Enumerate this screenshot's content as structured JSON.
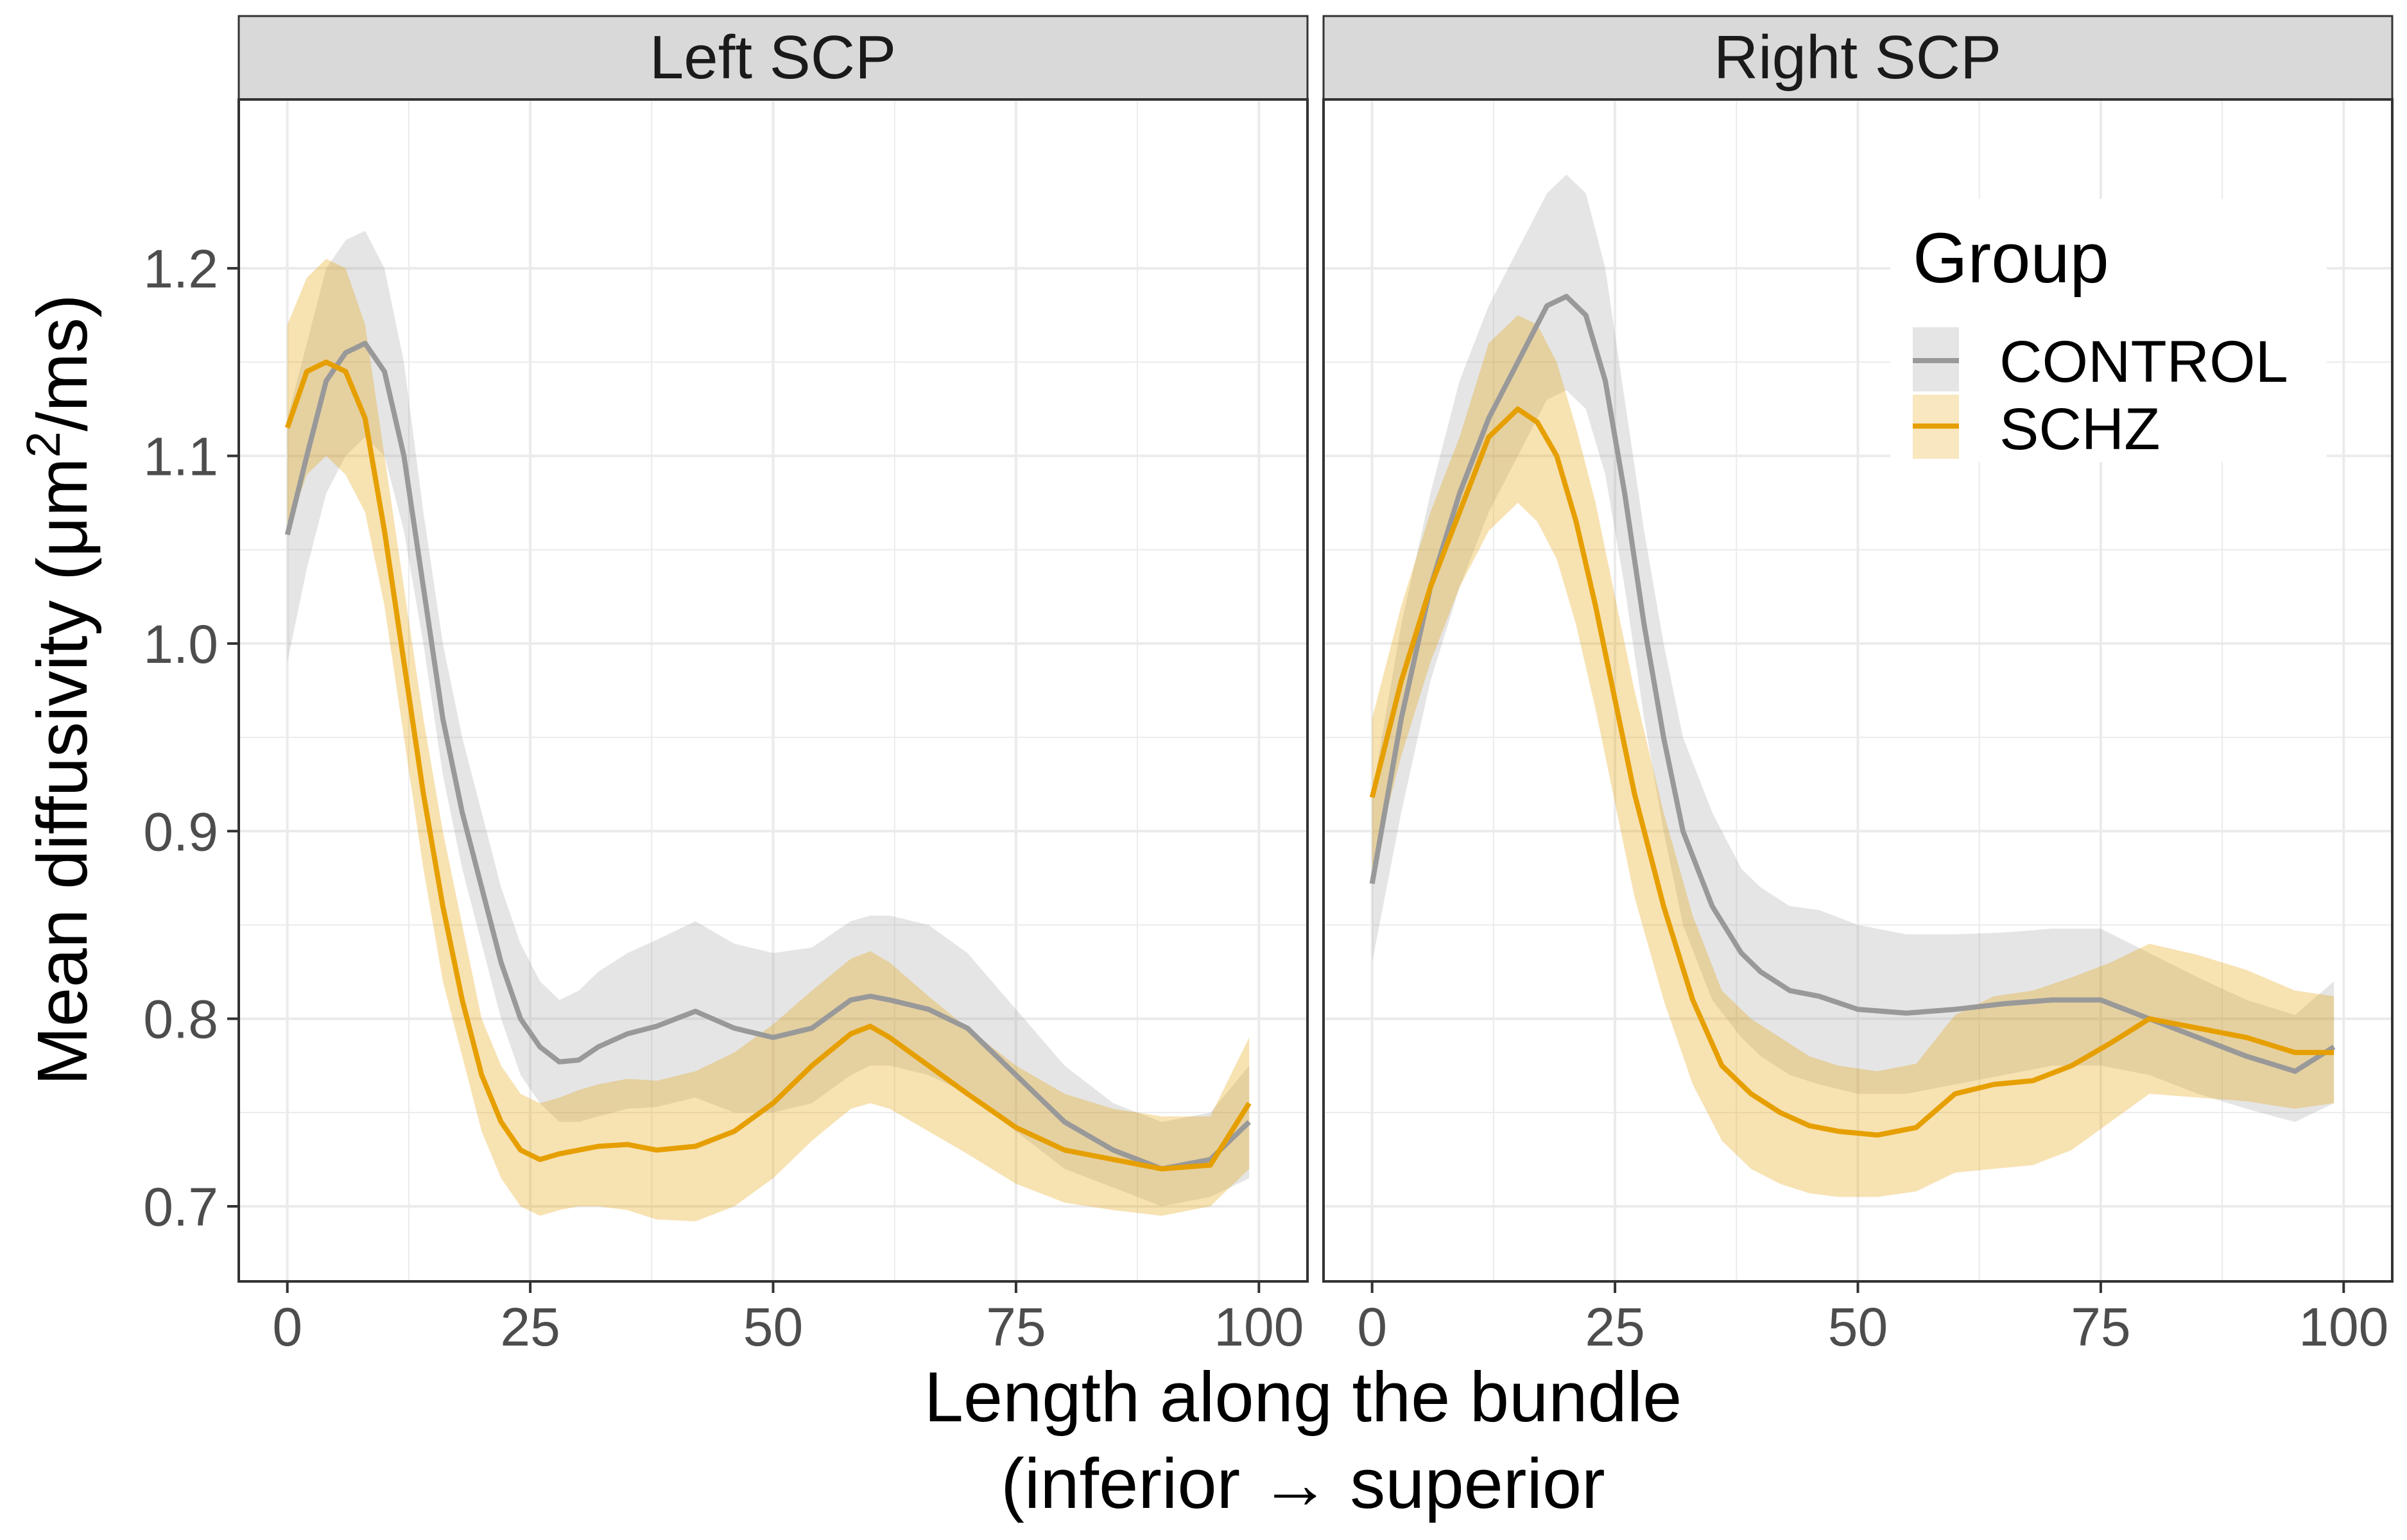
{
  "chart_data": {
    "type": "line",
    "facets": [
      "Left SCP",
      "Right SCP"
    ],
    "xlabel": "Length along the bundle",
    "xlabel_line2": "(inferior → superior",
    "ylabel_prefix": "Mean diffusivity (μm",
    "ylabel_sup": "2",
    "ylabel_suffix": "/ms)",
    "xlim": [
      -5,
      105
    ],
    "ylim": [
      0.66,
      1.29
    ],
    "xticks": [
      0,
      25,
      50,
      75,
      100
    ],
    "xtick_labels": [
      "0",
      "25",
      "50",
      "75",
      "100"
    ],
    "yticks": [
      0.7,
      0.8,
      0.9,
      1.0,
      1.1,
      1.2
    ],
    "ytick_labels": [
      "0.7",
      "0.8",
      "0.9",
      "1.0",
      "1.1",
      "1.2"
    ],
    "grid": true,
    "legend": {
      "title": "Group",
      "position": "top-right",
      "entries": [
        "CONTROL",
        "SCHZ"
      ]
    },
    "colors": {
      "CONTROL": "#999999",
      "SCHZ": "#E69F00",
      "strip_bg": "#d9d9d9",
      "grid": "#ebebeb"
    },
    "panels": [
      {
        "facet": "Left SCP",
        "series": [
          {
            "group": "CONTROL",
            "x": [
              0,
              2,
              4,
              6,
              8,
              10,
              12,
              14,
              16,
              18,
              20,
              22,
              24,
              26,
              28,
              30,
              32,
              35,
              38,
              42,
              46,
              50,
              54,
              58,
              60,
              62,
              66,
              70,
              75,
              80,
              85,
              90,
              95,
              99
            ],
            "y": [
              1.058,
              1.1,
              1.14,
              1.155,
              1.16,
              1.145,
              1.1,
              1.03,
              0.96,
              0.91,
              0.87,
              0.83,
              0.8,
              0.785,
              0.777,
              0.778,
              0.785,
              0.792,
              0.796,
              0.804,
              0.795,
              0.79,
              0.795,
              0.81,
              0.812,
              0.81,
              0.805,
              0.795,
              0.77,
              0.745,
              0.73,
              0.72,
              0.725,
              0.745
            ],
            "lower": [
              0.99,
              1.04,
              1.08,
              1.1,
              1.11,
              1.1,
              1.06,
              1.0,
              0.93,
              0.88,
              0.84,
              0.8,
              0.77,
              0.755,
              0.745,
              0.745,
              0.748,
              0.752,
              0.753,
              0.758,
              0.75,
              0.75,
              0.755,
              0.77,
              0.775,
              0.775,
              0.77,
              0.76,
              0.74,
              0.72,
              0.71,
              0.7,
              0.705,
              0.715
            ],
            "upper": [
              1.12,
              1.16,
              1.2,
              1.215,
              1.22,
              1.2,
              1.15,
              1.07,
              1.0,
              0.95,
              0.91,
              0.87,
              0.84,
              0.82,
              0.81,
              0.815,
              0.825,
              0.835,
              0.842,
              0.852,
              0.84,
              0.835,
              0.838,
              0.852,
              0.855,
              0.855,
              0.85,
              0.835,
              0.805,
              0.775,
              0.755,
              0.745,
              0.75,
              0.775
            ]
          },
          {
            "group": "SCHZ",
            "x": [
              0,
              2,
              4,
              6,
              8,
              10,
              12,
              14,
              16,
              18,
              20,
              22,
              24,
              26,
              28,
              30,
              32,
              35,
              38,
              42,
              46,
              50,
              54,
              58,
              60,
              62,
              66,
              70,
              75,
              80,
              85,
              90,
              95,
              99
            ],
            "y": [
              1.115,
              1.145,
              1.15,
              1.145,
              1.12,
              1.06,
              0.99,
              0.92,
              0.86,
              0.81,
              0.77,
              0.745,
              0.73,
              0.725,
              0.728,
              0.73,
              0.732,
              0.733,
              0.73,
              0.732,
              0.74,
              0.755,
              0.775,
              0.792,
              0.796,
              0.79,
              0.775,
              0.76,
              0.742,
              0.73,
              0.725,
              0.72,
              0.722,
              0.755
            ],
            "lower": [
              1.06,
              1.09,
              1.1,
              1.09,
              1.07,
              1.02,
              0.95,
              0.88,
              0.82,
              0.78,
              0.74,
              0.715,
              0.7,
              0.695,
              0.698,
              0.7,
              0.7,
              0.698,
              0.693,
              0.692,
              0.7,
              0.715,
              0.735,
              0.752,
              0.755,
              0.752,
              0.74,
              0.728,
              0.712,
              0.702,
              0.698,
              0.695,
              0.7,
              0.72
            ],
            "upper": [
              1.17,
              1.195,
              1.205,
              1.2,
              1.17,
              1.1,
              1.03,
              0.96,
              0.9,
              0.85,
              0.8,
              0.775,
              0.76,
              0.755,
              0.758,
              0.762,
              0.765,
              0.768,
              0.767,
              0.772,
              0.782,
              0.797,
              0.815,
              0.832,
              0.836,
              0.83,
              0.812,
              0.795,
              0.775,
              0.76,
              0.752,
              0.748,
              0.748,
              0.79
            ]
          }
        ]
      },
      {
        "facet": "Right SCP",
        "series": [
          {
            "group": "CONTROL",
            "x": [
              0,
              3,
              6,
              9,
              12,
              15,
              18,
              20,
              22,
              24,
              26,
              28,
              30,
              32,
              35,
              38,
              40,
              43,
              46,
              50,
              55,
              60,
              65,
              70,
              75,
              80,
              85,
              90,
              95,
              99
            ],
            "y": [
              0.872,
              0.96,
              1.03,
              1.08,
              1.12,
              1.15,
              1.18,
              1.185,
              1.175,
              1.14,
              1.08,
              1.01,
              0.95,
              0.9,
              0.86,
              0.835,
              0.825,
              0.815,
              0.812,
              0.805,
              0.803,
              0.805,
              0.808,
              0.81,
              0.81,
              0.8,
              0.79,
              0.78,
              0.772,
              0.785
            ],
            "lower": [
              0.83,
              0.91,
              0.98,
              1.03,
              1.07,
              1.1,
              1.13,
              1.135,
              1.125,
              1.09,
              1.03,
              0.96,
              0.9,
              0.85,
              0.81,
              0.79,
              0.78,
              0.77,
              0.765,
              0.76,
              0.76,
              0.765,
              0.77,
              0.775,
              0.775,
              0.77,
              0.76,
              0.752,
              0.745,
              0.755
            ],
            "upper": [
              0.92,
              1.01,
              1.08,
              1.14,
              1.18,
              1.21,
              1.24,
              1.25,
              1.24,
              1.2,
              1.13,
              1.06,
              1.0,
              0.95,
              0.91,
              0.88,
              0.87,
              0.86,
              0.858,
              0.85,
              0.845,
              0.845,
              0.846,
              0.848,
              0.848,
              0.835,
              0.822,
              0.81,
              0.802,
              0.82
            ]
          },
          {
            "group": "SCHZ",
            "x": [
              0,
              3,
              6,
              9,
              12,
              15,
              17,
              19,
              21,
              23,
              25,
              27,
              30,
              33,
              36,
              39,
              42,
              45,
              48,
              52,
              56,
              60,
              64,
              68,
              72,
              76,
              80,
              85,
              90,
              95,
              99
            ],
            "y": [
              0.918,
              0.98,
              1.03,
              1.07,
              1.11,
              1.125,
              1.118,
              1.1,
              1.065,
              1.02,
              0.97,
              0.92,
              0.86,
              0.81,
              0.775,
              0.76,
              0.75,
              0.743,
              0.74,
              0.738,
              0.742,
              0.76,
              0.765,
              0.767,
              0.775,
              0.787,
              0.8,
              0.795,
              0.79,
              0.782,
              0.782
            ],
            "lower": [
              0.88,
              0.94,
              0.99,
              1.03,
              1.06,
              1.075,
              1.065,
              1.045,
              1.01,
              0.965,
              0.915,
              0.865,
              0.81,
              0.765,
              0.735,
              0.72,
              0.712,
              0.707,
              0.705,
              0.705,
              0.708,
              0.718,
              0.72,
              0.722,
              0.73,
              0.745,
              0.76,
              0.758,
              0.756,
              0.752,
              0.755
            ],
            "upper": [
              0.96,
              1.02,
              1.07,
              1.11,
              1.16,
              1.175,
              1.17,
              1.15,
              1.115,
              1.075,
              1.025,
              0.975,
              0.91,
              0.855,
              0.815,
              0.8,
              0.79,
              0.78,
              0.775,
              0.772,
              0.776,
              0.802,
              0.812,
              0.815,
              0.822,
              0.83,
              0.84,
              0.834,
              0.826,
              0.815,
              0.812
            ]
          }
        ]
      }
    ]
  }
}
